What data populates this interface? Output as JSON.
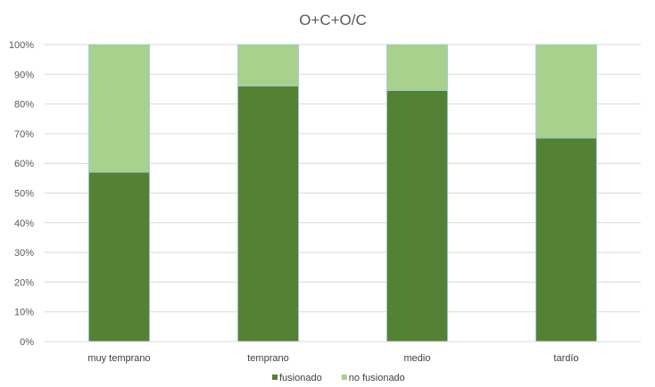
{
  "chart_data": {
    "type": "bar",
    "stacked": true,
    "title": "O+C+O/C",
    "categories": [
      "muy temprano",
      "temprano",
      "medio",
      "tardío"
    ],
    "series": [
      {
        "name": "fusionado",
        "values": [
          57,
          86,
          84.5,
          68.5
        ],
        "color": "#548235"
      },
      {
        "name": "no fusionado",
        "values": [
          43,
          14,
          15.5,
          31.5
        ],
        "color": "#A9D18E"
      }
    ],
    "ylim": [
      0,
      100
    ],
    "y_ticks": [
      "0%",
      "10%",
      "20%",
      "30%",
      "40%",
      "50%",
      "60%",
      "70%",
      "80%",
      "90%",
      "100%"
    ],
    "grid": true,
    "legend": "bottom"
  }
}
